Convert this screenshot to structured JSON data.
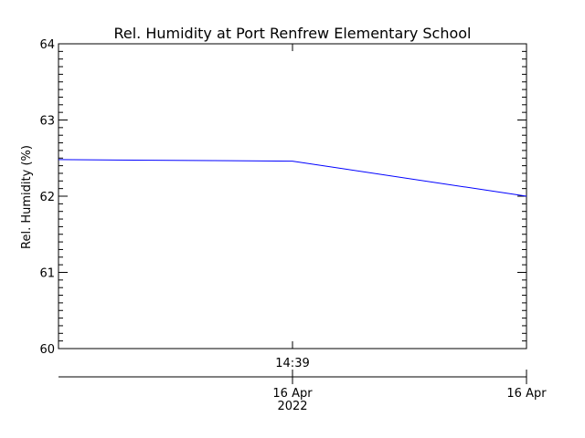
{
  "chart_data": {
    "type": "line",
    "title": "Rel. Humidity at Port Renfrew Elementary School",
    "xlabel": "",
    "ylabel": "Rel. Humidity (%)",
    "ylim": [
      60,
      64
    ],
    "yticks": [
      60,
      61,
      62,
      63,
      64
    ],
    "grid": false,
    "series": [
      {
        "color": "#0000ff",
        "x": [
          "2022-04-16 14:09",
          "2022-04-16 14:39",
          "2022-04-16 15:09"
        ],
        "values": [
          62.48,
          62.46,
          62.0
        ]
      }
    ],
    "time_axis": {
      "upper_tick_label": "14:39",
      "lower_tick_labels": [
        {
          "line1": "16 Apr",
          "line2": "2022"
        },
        {
          "line1": "16 Apr",
          "line2": ""
        }
      ]
    }
  }
}
